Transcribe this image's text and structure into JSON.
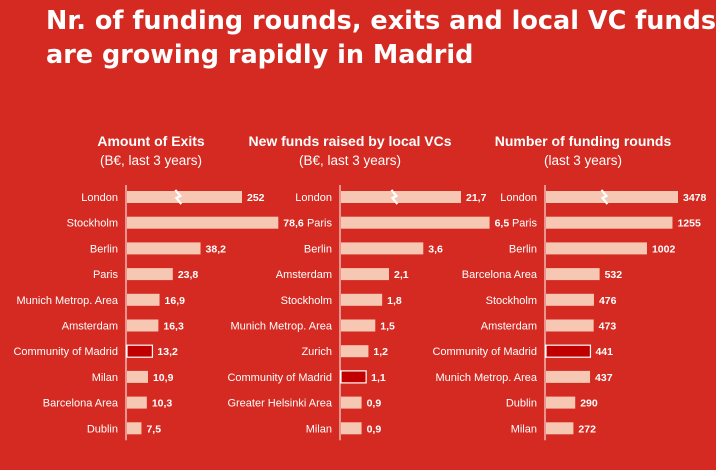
{
  "headline": {
    "line1": "Nr. of funding rounds, exits and local VC funds",
    "line2": "are growing rapidly in Madrid"
  },
  "colors": {
    "background": "#d42a22",
    "bar": "#f6c7b3",
    "highlight": "#c00000",
    "axis": "#ffffff",
    "text": "#ffffff"
  },
  "chart_data": [
    {
      "type": "bar",
      "orientation": "horizontal",
      "title": "Amount of Exits",
      "subtitle": "(B€, last 3 years)",
      "categories": [
        "London",
        "Stockholm",
        "Berlin",
        "Paris",
        "Munich Metrop. Area",
        "Amsterdam",
        "Community of Madrid",
        "Milan",
        "Barcelona Area",
        "Dublin"
      ],
      "values": [
        252,
        78.6,
        38.2,
        23.8,
        16.9,
        16.3,
        13.2,
        10.9,
        10.3,
        7.5
      ],
      "value_labels": [
        "252",
        "78,6",
        "38,2",
        "23,8",
        "16,9",
        "16,3",
        "13,2",
        "10,9",
        "10,3",
        "7,5"
      ],
      "highlight": "Community of Madrid",
      "axis_break": "London",
      "xlim": [
        0,
        80
      ]
    },
    {
      "type": "bar",
      "orientation": "horizontal",
      "title": "New funds raised by local VCs",
      "subtitle": "(B€, last 3 years)",
      "categories": [
        "London",
        "Paris",
        "Berlin",
        "Amsterdam",
        "Stockholm",
        "Munich Metrop. Area",
        "Zurich",
        "Community of Madrid",
        "Greater Helsinki Area",
        "Milan"
      ],
      "values": [
        21.7,
        6.5,
        3.6,
        2.1,
        1.8,
        1.5,
        1.2,
        1.1,
        0.9,
        0.9
      ],
      "value_labels": [
        "21,7",
        "6,5",
        "3,6",
        "2,1",
        "1,8",
        "1,5",
        "1,2",
        "1,1",
        "0,9",
        "0,9"
      ],
      "highlight": "Community of Madrid",
      "axis_break": "London",
      "xlim": [
        0,
        7
      ]
    },
    {
      "type": "bar",
      "orientation": "horizontal",
      "title": "Number of funding rounds",
      "subtitle": "(last 3 years)",
      "categories": [
        "London",
        "Paris",
        "Berlin",
        "Barcelona Area",
        "Stockholm",
        "Amsterdam",
        "Community of Madrid",
        "Munich Metrop. Area",
        "Dublin",
        "Milan"
      ],
      "values": [
        3478,
        1255,
        1002,
        532,
        476,
        473,
        441,
        437,
        290,
        272
      ],
      "value_labels": [
        "3478",
        "1255",
        "1002",
        "532",
        "476",
        "473",
        "441",
        "437",
        "290",
        "272"
      ],
      "highlight": "Community of Madrid",
      "axis_break": "London",
      "xlim": [
        0,
        1300
      ]
    }
  ]
}
